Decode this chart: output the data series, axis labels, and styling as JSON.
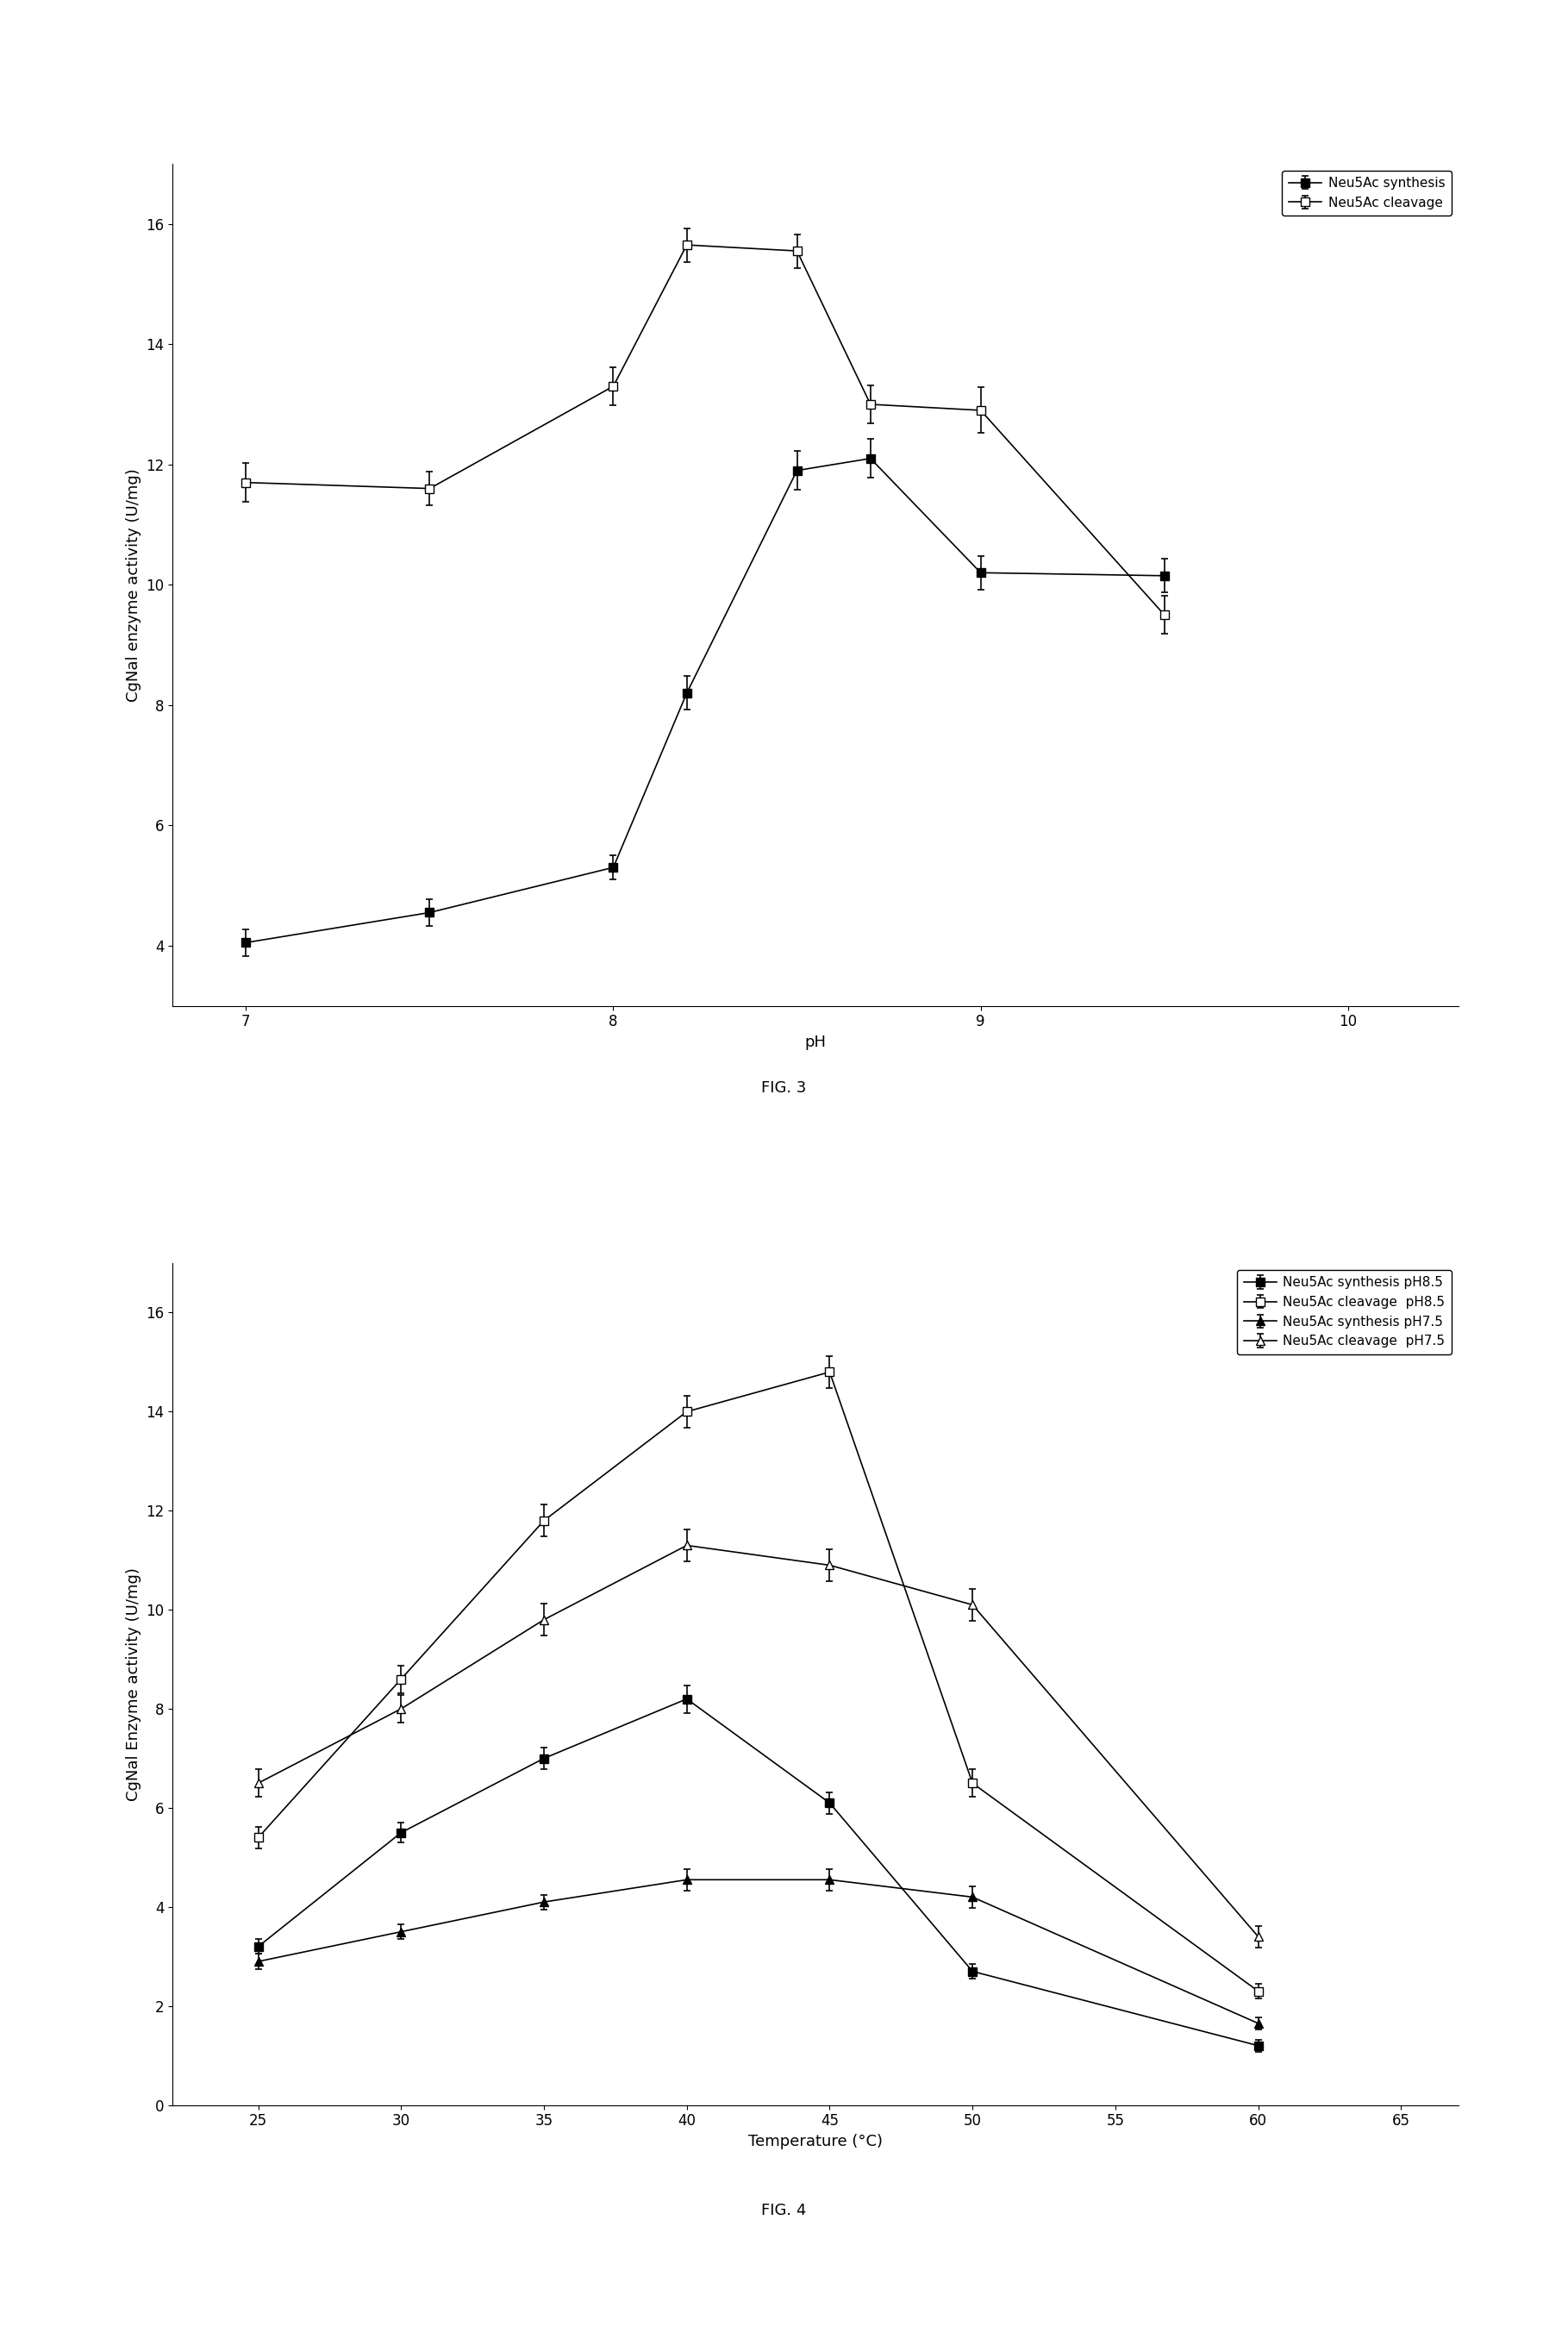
{
  "fig3": {
    "xlabel": "pH",
    "ylabel": "CgNal enzyme activity (U/mg)",
    "xlim": [
      6.8,
      10.3
    ],
    "ylim": [
      3.0,
      17.0
    ],
    "yticks": [
      4,
      6,
      8,
      10,
      12,
      14,
      16
    ],
    "xticks": [
      7,
      8,
      9,
      10
    ],
    "synthesis_x": [
      7.0,
      7.5,
      8.0,
      8.2,
      8.5,
      8.7,
      9.0,
      9.5
    ],
    "synthesis_y": [
      4.05,
      4.55,
      5.3,
      8.2,
      11.9,
      12.1,
      10.2,
      10.15
    ],
    "synthesis_yerr": [
      0.22,
      0.22,
      0.2,
      0.28,
      0.32,
      0.32,
      0.28,
      0.28
    ],
    "synthesis_label": "Neu5Ac synthesis",
    "cleavage_x": [
      7.0,
      7.5,
      8.0,
      8.2,
      8.5,
      8.7,
      9.0,
      9.5
    ],
    "cleavage_y": [
      11.7,
      11.6,
      13.3,
      15.65,
      15.55,
      13.0,
      12.9,
      9.5
    ],
    "cleavage_yerr": [
      0.32,
      0.28,
      0.32,
      0.28,
      0.28,
      0.32,
      0.38,
      0.32
    ],
    "cleavage_label": "Neu5Ac cleavage",
    "fig_label": "FIG. 3"
  },
  "fig4": {
    "xlabel": "Temperature (°C)",
    "ylabel": "CgNal Enzyme activity (U/mg)",
    "xlim": [
      22,
      67
    ],
    "ylim": [
      0,
      17
    ],
    "yticks": [
      0,
      2,
      4,
      6,
      8,
      10,
      12,
      14,
      16
    ],
    "xticks": [
      25,
      30,
      35,
      40,
      45,
      50,
      55,
      60,
      65
    ],
    "synth85_x": [
      25,
      30,
      35,
      40,
      45,
      50,
      60
    ],
    "synth85_y": [
      3.2,
      5.5,
      7.0,
      8.2,
      6.1,
      2.7,
      1.2
    ],
    "synth85_yerr": [
      0.15,
      0.2,
      0.22,
      0.28,
      0.22,
      0.15,
      0.12
    ],
    "synth85_label": "Neu5Ac synthesis pH8.5",
    "cleav85_x": [
      25,
      30,
      35,
      40,
      45,
      50,
      60
    ],
    "cleav85_y": [
      5.4,
      8.6,
      11.8,
      14.0,
      14.8,
      6.5,
      2.3
    ],
    "cleav85_yerr": [
      0.22,
      0.28,
      0.32,
      0.32,
      0.32,
      0.28,
      0.15
    ],
    "cleav85_label": "Neu5Ac cleavage  pH8.5",
    "synth75_x": [
      25,
      30,
      35,
      40,
      45,
      50,
      60
    ],
    "synth75_y": [
      2.9,
      3.5,
      4.1,
      4.55,
      4.55,
      4.2,
      1.65
    ],
    "synth75_yerr": [
      0.15,
      0.15,
      0.15,
      0.22,
      0.22,
      0.22,
      0.12
    ],
    "synth75_label": "Neu5Ac synthesis pH7.5",
    "cleav75_x": [
      25,
      30,
      35,
      40,
      45,
      50,
      60
    ],
    "cleav75_y": [
      6.5,
      8.0,
      9.8,
      11.3,
      10.9,
      10.1,
      3.4
    ],
    "cleav75_yerr": [
      0.28,
      0.28,
      0.32,
      0.32,
      0.32,
      0.32,
      0.22
    ],
    "cleav75_label": "Neu5Ac cleavage  pH7.5",
    "fig_label": "FIG. 4"
  },
  "line_color": "#000000",
  "marker_size": 7,
  "cap_size": 3,
  "line_width": 1.2,
  "font_size_label": 13,
  "font_size_tick": 12,
  "font_size_legend": 11,
  "font_size_figlabel": 13
}
